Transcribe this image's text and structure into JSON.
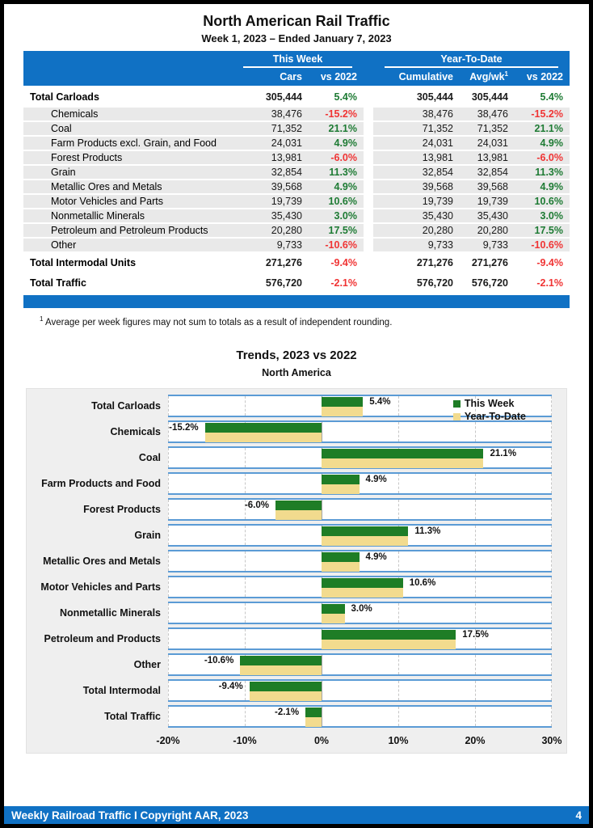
{
  "report": {
    "title": "North American Rail Traffic",
    "subtitle": "Week 1, 2023 – Ended January 7, 2023",
    "footnote_sup": "1",
    "footnote": "Average per week figures may not sum to totals as a result of independent rounding."
  },
  "table": {
    "group_headers": {
      "this_week": "This Week",
      "ytd": "Year-To-Date"
    },
    "col_headers": {
      "cars": "Cars",
      "tw_vs": "vs 2022",
      "cumulative": "Cumulative",
      "avgwk": "Avg/wk",
      "avgwk_sup": "1",
      "ytd_vs": "vs 2022"
    },
    "rows": [
      {
        "label": "Total Carloads",
        "type": "total",
        "cars": "305,444",
        "tw_pct": "5.4%",
        "cumulative": "305,444",
        "avgwk": "305,444",
        "ytd_pct": "5.4%",
        "trend": "up"
      },
      {
        "label": "Chemicals",
        "type": "sub",
        "cars": "38,476",
        "tw_pct": "-15.2%",
        "cumulative": "38,476",
        "avgwk": "38,476",
        "ytd_pct": "-15.2%",
        "trend": "down"
      },
      {
        "label": "Coal",
        "type": "sub",
        "cars": "71,352",
        "tw_pct": "21.1%",
        "cumulative": "71,352",
        "avgwk": "71,352",
        "ytd_pct": "21.1%",
        "trend": "up"
      },
      {
        "label": "Farm Products excl. Grain, and Food",
        "type": "sub",
        "cars": "24,031",
        "tw_pct": "4.9%",
        "cumulative": "24,031",
        "avgwk": "24,031",
        "ytd_pct": "4.9%",
        "trend": "up"
      },
      {
        "label": "Forest Products",
        "type": "sub",
        "cars": "13,981",
        "tw_pct": "-6.0%",
        "cumulative": "13,981",
        "avgwk": "13,981",
        "ytd_pct": "-6.0%",
        "trend": "down"
      },
      {
        "label": "Grain",
        "type": "sub",
        "cars": "32,854",
        "tw_pct": "11.3%",
        "cumulative": "32,854",
        "avgwk": "32,854",
        "ytd_pct": "11.3%",
        "trend": "up"
      },
      {
        "label": "Metallic Ores and Metals",
        "type": "sub",
        "cars": "39,568",
        "tw_pct": "4.9%",
        "cumulative": "39,568",
        "avgwk": "39,568",
        "ytd_pct": "4.9%",
        "trend": "up"
      },
      {
        "label": "Motor Vehicles and Parts",
        "type": "sub",
        "cars": "19,739",
        "tw_pct": "10.6%",
        "cumulative": "19,739",
        "avgwk": "19,739",
        "ytd_pct": "10.6%",
        "trend": "up"
      },
      {
        "label": "Nonmetallic Minerals",
        "type": "sub",
        "cars": "35,430",
        "tw_pct": "3.0%",
        "cumulative": "35,430",
        "avgwk": "35,430",
        "ytd_pct": "3.0%",
        "trend": "up"
      },
      {
        "label": "Petroleum and Petroleum Products",
        "type": "sub",
        "cars": "20,280",
        "tw_pct": "17.5%",
        "cumulative": "20,280",
        "avgwk": "20,280",
        "ytd_pct": "17.5%",
        "trend": "up"
      },
      {
        "label": "Other",
        "type": "sub",
        "cars": "9,733",
        "tw_pct": "-10.6%",
        "cumulative": "9,733",
        "avgwk": "9,733",
        "ytd_pct": "-10.6%",
        "trend": "down"
      },
      {
        "label": "Total Intermodal Units",
        "type": "total",
        "cars": "271,276",
        "tw_pct": "-9.4%",
        "cumulative": "271,276",
        "avgwk": "271,276",
        "ytd_pct": "-9.4%",
        "trend": "down"
      },
      {
        "label": "Total Traffic",
        "type": "total",
        "cars": "576,720",
        "tw_pct": "-2.1%",
        "cumulative": "576,720",
        "avgwk": "576,720",
        "ytd_pct": "-2.1%",
        "trend": "down"
      }
    ]
  },
  "chart_data": {
    "type": "bar",
    "orientation": "horizontal",
    "title": "Trends, 2023 vs 2022",
    "subtitle": "North America",
    "categories": [
      "Total Carloads",
      "Chemicals",
      "Coal",
      "Farm Products and Food",
      "Forest Products",
      "Grain",
      "Metallic Ores and Metals",
      "Motor Vehicles and Parts",
      "Nonmetallic Minerals",
      "Petroleum and Products",
      "Other",
      "Total Intermodal",
      "Total Traffic"
    ],
    "series": [
      {
        "name": "This Week",
        "color": "#1e7d26",
        "values": [
          5.4,
          -15.2,
          21.1,
          4.9,
          -6.0,
          11.3,
          4.9,
          10.6,
          3.0,
          17.5,
          -10.6,
          -9.4,
          -2.1
        ]
      },
      {
        "name": "Year-To-Date",
        "color": "#f2db8e",
        "values": [
          5.4,
          -15.2,
          21.1,
          4.9,
          -6.0,
          11.3,
          4.9,
          10.6,
          3.0,
          17.5,
          -10.6,
          -9.4,
          -2.1
        ]
      }
    ],
    "value_labels": [
      "5.4%",
      "-15.2%",
      "21.1%",
      "4.9%",
      "-6.0%",
      "11.3%",
      "4.9%",
      "10.6%",
      "3.0%",
      "17.5%",
      "-10.6%",
      "-9.4%",
      "-2.1%"
    ],
    "xlim": [
      -20,
      30
    ],
    "xticks": [
      "-20%",
      "-10%",
      "0%",
      "10%",
      "20%",
      "30%"
    ],
    "xtick_values": [
      -20,
      -10,
      0,
      10,
      20,
      30
    ],
    "legend_position": "top-right",
    "grid": "vertical-dashed",
    "band_border_color": "#5b9bd5"
  },
  "footer": {
    "left": "Weekly Railroad Traffic I Copyright AAR, 2023",
    "page": "4"
  }
}
